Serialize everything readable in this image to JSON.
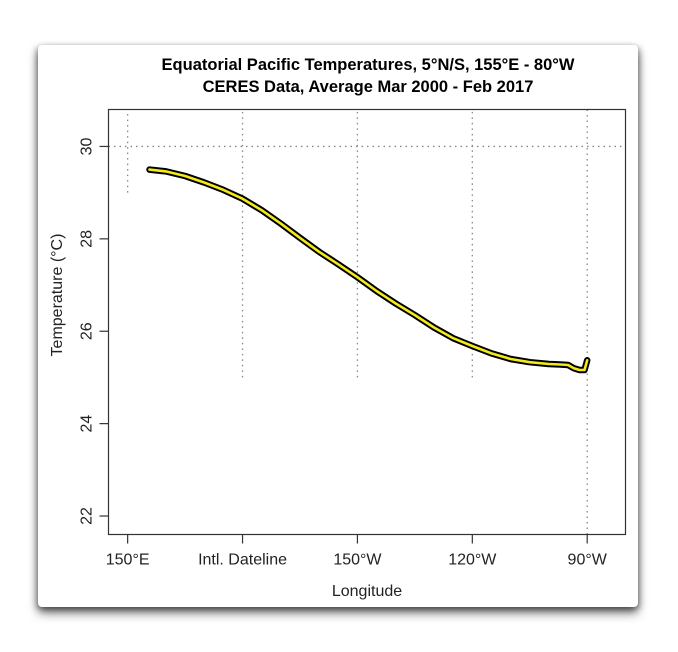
{
  "chart_data": {
    "type": "line",
    "title": "Equatorial Pacific Temperatures, 5°N/S, 155°E - 80°W",
    "subtitle": "CERES Data, Average Mar 2000 - Feb 2017",
    "xlabel": "Longitude",
    "ylabel": "Temperature (°C)",
    "x_units": "degrees east (0-360)",
    "xlim": [
      145,
      280
    ],
    "ylim": [
      21.6,
      30.8
    ],
    "x_ticks": [
      {
        "value": 150,
        "label": "150°E"
      },
      {
        "value": 180,
        "label": "Intl. Dateline"
      },
      {
        "value": 210,
        "label": "150°W"
      },
      {
        "value": 240,
        "label": "120°W"
      },
      {
        "value": 270,
        "label": "90°W"
      }
    ],
    "y_ticks": [
      {
        "value": 22,
        "label": "22"
      },
      {
        "value": 24,
        "label": "24"
      },
      {
        "value": 26,
        "label": "26"
      },
      {
        "value": 28,
        "label": "28"
      },
      {
        "value": 30,
        "label": "30"
      }
    ],
    "reference_lines": {
      "horizontal": [
        {
          "y": 30,
          "style": "dotted"
        }
      ],
      "vertical": [
        {
          "x": 150,
          "y_range": [
            29,
            30.8
          ],
          "style": "dotted"
        },
        {
          "x": 180,
          "y_range": [
            25,
            30.8
          ],
          "style": "dotted"
        },
        {
          "x": 210,
          "y_range": [
            25,
            30.8
          ],
          "style": "dotted"
        },
        {
          "x": 240,
          "y_range": [
            25,
            30.8
          ],
          "style": "dotted"
        },
        {
          "x": 270,
          "y_range": [
            21.6,
            30.8
          ],
          "style": "dotted"
        }
      ]
    },
    "series": [
      {
        "name": "Temperature",
        "color": "#f2ea1a",
        "outline_color": "#000000",
        "x": [
          155.7,
          160,
          165,
          170,
          175,
          180,
          185,
          190,
          195,
          200,
          205,
          210,
          215,
          220,
          225,
          230,
          235,
          240,
          245,
          250,
          255,
          260,
          263,
          265,
          266.5,
          268,
          269.3,
          270
        ],
        "y": [
          29.5,
          29.46,
          29.36,
          29.22,
          29.06,
          28.87,
          28.62,
          28.33,
          28.02,
          27.72,
          27.45,
          27.17,
          26.87,
          26.6,
          26.35,
          26.08,
          25.85,
          25.68,
          25.52,
          25.4,
          25.33,
          25.29,
          25.28,
          25.27,
          25.2,
          25.16,
          25.16,
          25.37
        ]
      }
    ],
    "grid": false,
    "legend": "none"
  }
}
